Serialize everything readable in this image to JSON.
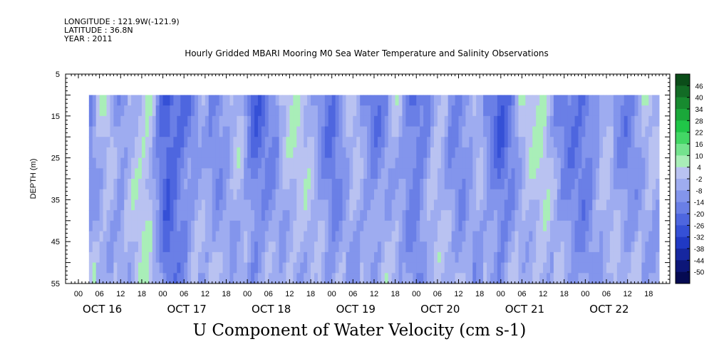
{
  "header": {
    "longitude": "LONGITUDE : 121.9W(-121.9)",
    "latitude": "LATITUDE : 36.8N",
    "year": "YEAR : 2011"
  },
  "chart_data": {
    "type": "heatmap",
    "title": "Hourly Gridded MBARI Mooring M0 Sea Water Temperature and Salinity Observations",
    "subtitle": "U Component of Water Velocity (cm s-1)",
    "ylabel": "DEPTH (m)",
    "ylim": [
      55,
      5
    ],
    "y_ticks": [
      5,
      15,
      25,
      35,
      45,
      55
    ],
    "data_depth_range": [
      10,
      55
    ],
    "x_hour_ticks": [
      "00",
      "06",
      "12",
      "18",
      "00",
      "06",
      "12",
      "18",
      "00",
      "06",
      "12",
      "18",
      "00",
      "06",
      "12",
      "18",
      "00",
      "06",
      "12",
      "18",
      "00",
      "06",
      "12",
      "18",
      "00",
      "06",
      "12",
      "18"
    ],
    "x_day_labels": [
      "OCT 16",
      "OCT 17",
      "OCT 18",
      "OCT 19",
      "OCT 20",
      "OCT 21",
      "OCT 22"
    ],
    "data_start_hour": 3,
    "data_end_hour": 165,
    "colorbar": {
      "levels": [
        "46",
        "40",
        "34",
        "28",
        "22",
        "16",
        "10",
        "4",
        "-2",
        "-8",
        "-14",
        "-20",
        "-26",
        "-32",
        "-38",
        "-44",
        "-50"
      ],
      "colors": [
        "#0b4d19",
        "#126b25",
        "#178a2f",
        "#1aa83a",
        "#20c648",
        "#43d765",
        "#74e38e",
        "#a9eeb8",
        "#b9c2f1",
        "#9eacf0",
        "#8395ec",
        "#6a7fe6",
        "#4e66df",
        "#3550d6",
        "#2039c4",
        "#1627a0",
        "#0c1678",
        "#050a52"
      ]
    },
    "u_velocity_profile_by_time": [
      {
        "hour": 3,
        "u": -3
      },
      {
        "hour": 8,
        "u": 6
      },
      {
        "hour": 12,
        "u": -4
      },
      {
        "hour": 16,
        "u": 6
      },
      {
        "hour": 20,
        "u": 10
      },
      {
        "hour": 25,
        "u": -18
      },
      {
        "hour": 30,
        "u": -10
      },
      {
        "hour": 35,
        "u": 2
      },
      {
        "hour": 40,
        "u": -4
      },
      {
        "hour": 46,
        "u": 4
      },
      {
        "hour": 50,
        "u": -12
      },
      {
        "hour": 55,
        "u": -4
      },
      {
        "hour": 60,
        "u": 6
      },
      {
        "hour": 66,
        "u": 4
      },
      {
        "hour": 72,
        "u": -10
      },
      {
        "hour": 78,
        "u": 4
      },
      {
        "hour": 84,
        "u": -8
      },
      {
        "hour": 90,
        "u": 4
      },
      {
        "hour": 96,
        "u": -12
      },
      {
        "hour": 102,
        "u": 6
      },
      {
        "hour": 108,
        "u": -6
      },
      {
        "hour": 114,
        "u": 2
      },
      {
        "hour": 120,
        "u": -14
      },
      {
        "hour": 126,
        "u": 4
      },
      {
        "hour": 132,
        "u": 8
      },
      {
        "hour": 138,
        "u": -6
      },
      {
        "hour": 144,
        "u": -10
      },
      {
        "hour": 150,
        "u": 4
      },
      {
        "hour": 156,
        "u": -6
      },
      {
        "hour": 162,
        "u": 4
      },
      {
        "hour": 165,
        "u": 0
      }
    ]
  }
}
